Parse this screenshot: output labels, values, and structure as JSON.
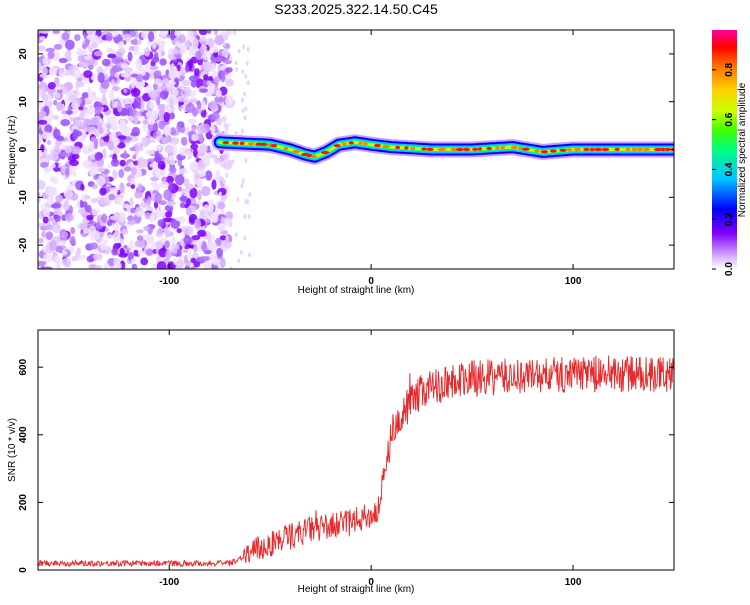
{
  "title": "S233.2025.322.14.50.C45",
  "colors": {
    "snr_line": "#e8282a",
    "axis": "#000000",
    "noise": "#8a2be2",
    "colormap": [
      "#ffffff",
      "#cc99ff",
      "#7f00ff",
      "#0000ff",
      "#00c8ff",
      "#00ff80",
      "#40ff00",
      "#c8ff00",
      "#ffd000",
      "#ff7000",
      "#ff0000",
      "#ff00a0"
    ]
  },
  "chart_data": [
    {
      "type": "heatmap",
      "name": "spectrogram",
      "xlabel": "Height of straight line (km)",
      "ylabel": "Frequency (Hz)",
      "xlim": [
        -165,
        150
      ],
      "ylim": [
        -25,
        25
      ],
      "x_ticks": [
        -100,
        0,
        100
      ],
      "y_ticks": [
        -20,
        -10,
        0,
        10,
        20
      ],
      "signal_start_x": -75,
      "noise_end_x": -70,
      "ridge": [
        {
          "x": -75,
          "y": 1.5
        },
        {
          "x": -60,
          "y": 1.2
        },
        {
          "x": -50,
          "y": 1.0
        },
        {
          "x": -40,
          "y": 0.0
        },
        {
          "x": -33,
          "y": -1.0
        },
        {
          "x": -28,
          "y": -1.5
        },
        {
          "x": -22,
          "y": -0.5
        },
        {
          "x": -16,
          "y": 1.0
        },
        {
          "x": -8,
          "y": 1.5
        },
        {
          "x": 0,
          "y": 1.0
        },
        {
          "x": 10,
          "y": 0.5
        },
        {
          "x": 30,
          "y": 0.0
        },
        {
          "x": 50,
          "y": 0.0
        },
        {
          "x": 70,
          "y": 0.5
        },
        {
          "x": 85,
          "y": -0.5
        },
        {
          "x": 100,
          "y": 0.0
        },
        {
          "x": 120,
          "y": 0.0
        },
        {
          "x": 150,
          "y": 0.0
        }
      ],
      "colorbar": {
        "label": "Normalized spectral amplitude",
        "range": [
          0,
          0.96
        ],
        "ticks": [
          "0.0",
          "0.2",
          "0.4",
          "0.6",
          "0.8"
        ]
      }
    },
    {
      "type": "line",
      "name": "snr",
      "xlabel": "Height of straight line (km)",
      "ylabel": "SNR (10 * v/v)",
      "xlim": [
        -165,
        150
      ],
      "ylim": [
        0,
        710
      ],
      "x_ticks": [
        -100,
        0,
        100
      ],
      "y_ticks": [
        0,
        200,
        400,
        600
      ],
      "trend": [
        {
          "x": -165,
          "y": 20
        },
        {
          "x": -70,
          "y": 20
        },
        {
          "x": -60,
          "y": 50
        },
        {
          "x": -45,
          "y": 90
        },
        {
          "x": -30,
          "y": 120
        },
        {
          "x": -10,
          "y": 140
        },
        {
          "x": 3,
          "y": 170
        },
        {
          "x": 7,
          "y": 290
        },
        {
          "x": 10,
          "y": 400
        },
        {
          "x": 15,
          "y": 460
        },
        {
          "x": 25,
          "y": 530
        },
        {
          "x": 40,
          "y": 560
        },
        {
          "x": 60,
          "y": 570
        },
        {
          "x": 100,
          "y": 580
        },
        {
          "x": 150,
          "y": 580
        }
      ]
    }
  ]
}
